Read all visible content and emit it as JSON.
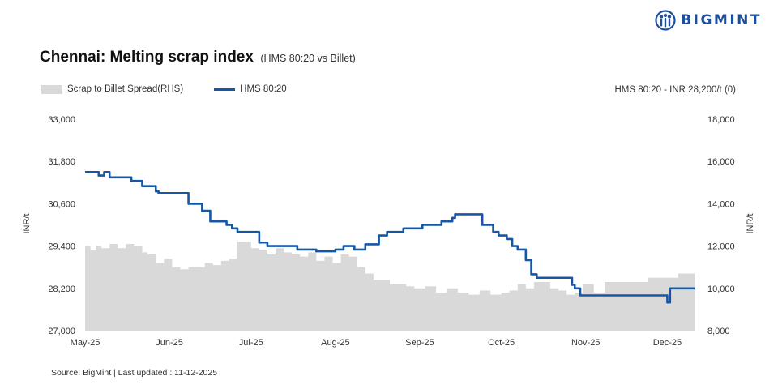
{
  "brand": {
    "name": "BIGMINT",
    "colors": {
      "brand": "#1e4f9a",
      "line": "#1557a5",
      "area": "#d9d9d9"
    },
    "icon": "bigmint-logo-icon"
  },
  "header": {
    "title": "Chennai: Melting scrap index",
    "subtitle": "(HMS 80:20 vs Billet)"
  },
  "legend": {
    "spread_label": "Scrap to Billet Spread(RHS)",
    "hms_label": "HMS 80:20"
  },
  "note": "HMS 80:20 - INR 28,200/t (0)",
  "footer": {
    "source": "Source: BigMint | Last updated : 11-12-2025"
  },
  "chart_data": {
    "type": "line",
    "title": "Chennai: Melting scrap index",
    "subtitle": "(HMS 80:20 vs Billet)",
    "ylabel": "INR/t",
    "y2label": "INR/t",
    "ylim": [
      27000,
      33000
    ],
    "y2lim": [
      8000,
      18000
    ],
    "yticks": [
      "33,000",
      "31,800",
      "30,600",
      "29,400",
      "28,200",
      "27,000"
    ],
    "y2ticks": [
      "18,000",
      "16,000",
      "14,000",
      "12,000",
      "10,000",
      "8,000"
    ],
    "xticks": [
      "May-25",
      "Jun-25",
      "Jul-25",
      "Aug-25",
      "Sep-25",
      "Oct-25",
      "Nov-25",
      "Dec-25"
    ],
    "grid": false,
    "legend_position": "top-left",
    "series": [
      {
        "name": "Scrap to Billet Spread(RHS)",
        "type": "area",
        "axis": "right",
        "x": [
          "2025-05-01",
          "2025-05-03",
          "2025-05-05",
          "2025-05-07",
          "2025-05-10",
          "2025-05-13",
          "2025-05-16",
          "2025-05-19",
          "2025-05-22",
          "2025-05-24",
          "2025-05-27",
          "2025-05-30",
          "2025-06-02",
          "2025-06-05",
          "2025-06-08",
          "2025-06-11",
          "2025-06-14",
          "2025-06-17",
          "2025-06-20",
          "2025-06-23",
          "2025-06-26",
          "2025-06-28",
          "2025-07-01",
          "2025-07-04",
          "2025-07-07",
          "2025-07-10",
          "2025-07-13",
          "2025-07-16",
          "2025-07-19",
          "2025-07-22",
          "2025-07-25",
          "2025-07-28",
          "2025-07-31",
          "2025-08-03",
          "2025-08-06",
          "2025-08-09",
          "2025-08-12",
          "2025-08-15",
          "2025-08-18",
          "2025-08-21",
          "2025-08-24",
          "2025-08-27",
          "2025-08-30",
          "2025-09-03",
          "2025-09-07",
          "2025-09-11",
          "2025-09-15",
          "2025-09-19",
          "2025-09-23",
          "2025-09-27",
          "2025-10-01",
          "2025-10-04",
          "2025-10-07",
          "2025-10-10",
          "2025-10-13",
          "2025-10-16",
          "2025-10-19",
          "2025-10-22",
          "2025-10-25",
          "2025-10-28",
          "2025-10-31",
          "2025-11-04",
          "2025-11-08",
          "2025-11-12",
          "2025-11-16",
          "2025-11-20",
          "2025-11-24",
          "2025-11-28",
          "2025-12-02",
          "2025-12-05",
          "2025-12-08",
          "2025-12-11"
        ],
        "values": [
          12000,
          11800,
          12000,
          11900,
          12100,
          11900,
          12100,
          12000,
          11700,
          11600,
          11200,
          11400,
          11000,
          10900,
          11000,
          11000,
          11200,
          11100,
          11300,
          11400,
          12200,
          12200,
          11900,
          11800,
          11600,
          11900,
          11700,
          11600,
          11500,
          11700,
          11300,
          11500,
          11200,
          11600,
          11500,
          11000,
          10700,
          10400,
          10400,
          10200,
          10200,
          10100,
          10000,
          10100,
          9800,
          10000,
          9800,
          9700,
          9900,
          9700,
          9800,
          9900,
          10200,
          10000,
          10300,
          10300,
          10000,
          9900,
          9700,
          9800,
          10200,
          9800,
          10300,
          10300,
          10300,
          10300,
          10500,
          10500,
          10500,
          10700,
          10700,
          10700
        ]
      },
      {
        "name": "HMS 80:20",
        "type": "line",
        "axis": "left",
        "x": [
          "2025-05-01",
          "2025-05-04",
          "2025-05-06",
          "2025-05-08",
          "2025-05-10",
          "2025-05-15",
          "2025-05-18",
          "2025-05-20",
          "2025-05-22",
          "2025-05-25",
          "2025-05-27",
          "2025-05-28",
          "2025-06-07",
          "2025-06-08",
          "2025-06-10",
          "2025-06-13",
          "2025-06-15",
          "2025-06-16",
          "2025-06-18",
          "2025-06-22",
          "2025-06-24",
          "2025-06-26",
          "2025-06-28",
          "2025-07-04",
          "2025-07-07",
          "2025-07-09",
          "2025-07-18",
          "2025-07-21",
          "2025-07-25",
          "2025-07-28",
          "2025-08-01",
          "2025-08-03",
          "2025-08-04",
          "2025-08-07",
          "2025-08-08",
          "2025-08-12",
          "2025-08-15",
          "2025-08-17",
          "2025-08-20",
          "2025-08-23",
          "2025-08-26",
          "2025-09-02",
          "2025-09-04",
          "2025-09-09",
          "2025-09-12",
          "2025-09-13",
          "2025-09-14",
          "2025-09-22",
          "2025-09-24",
          "2025-09-26",
          "2025-09-28",
          "2025-09-30",
          "2025-10-03",
          "2025-10-05",
          "2025-10-07",
          "2025-10-10",
          "2025-10-12",
          "2025-10-14",
          "2025-10-26",
          "2025-10-27",
          "2025-10-28",
          "2025-10-30",
          "2025-11-30",
          "2025-12-01",
          "2025-12-02",
          "2025-12-11"
        ],
        "values": [
          31500,
          31500,
          31400,
          31500,
          31350,
          31350,
          31250,
          31250,
          31100,
          31100,
          30950,
          30900,
          30900,
          30600,
          30600,
          30400,
          30400,
          30100,
          30100,
          30000,
          29900,
          29800,
          29800,
          29500,
          29400,
          29400,
          29300,
          29300,
          29250,
          29250,
          29300,
          29300,
          29400,
          29400,
          29300,
          29450,
          29450,
          29700,
          29800,
          29800,
          29900,
          30000,
          30000,
          30100,
          30100,
          30200,
          30300,
          30300,
          30000,
          30000,
          29800,
          29700,
          29600,
          29400,
          29300,
          29000,
          28600,
          28500,
          28500,
          28300,
          28200,
          28000,
          28000,
          27800,
          28200,
          28200
        ]
      }
    ]
  }
}
